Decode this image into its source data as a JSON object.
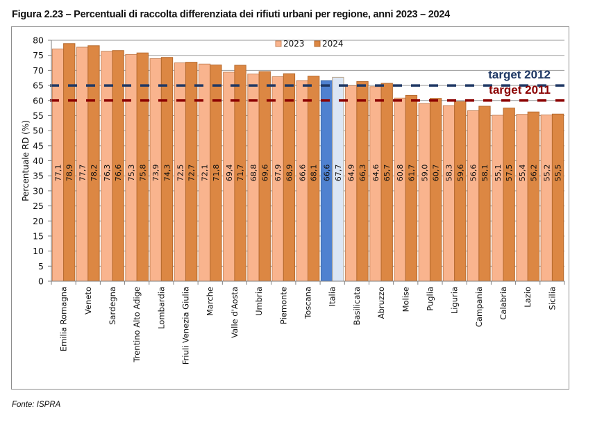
{
  "figure": {
    "title": "Figura 2.23 – Percentuali di raccolta differenziata dei rifiuti urbani per regione, anni 2023 – 2024",
    "source": "Fonte: ISPRA"
  },
  "chart_data": {
    "type": "bar",
    "title": "Figura 2.23 – Percentuali di raccolta differenziata dei rifiuti urbani per regione, anni 2023 – 2024",
    "xlabel": "",
    "ylabel": "Percentuale RD (%)",
    "ylim": [
      0,
      80
    ],
    "yticks": [
      0,
      5,
      10,
      15,
      20,
      25,
      30,
      35,
      40,
      45,
      50,
      55,
      60,
      65,
      70,
      75,
      80
    ],
    "grid": true,
    "legend_position": "top-center",
    "categories": [
      "Emilia Romagna",
      "Veneto",
      "Sardegna",
      "Trentino Alto Adige",
      "Lombardia",
      "Friuli Venezia Giulia",
      "Marche",
      "Valle d'Aosta",
      "Umbria",
      "Piemonte",
      "Toscana",
      "Italia",
      "Basilicata",
      "Abruzzo",
      "Molise",
      "Puglia",
      "Liguria",
      "Campania",
      "Calabria",
      "Lazio",
      "Sicilia"
    ],
    "series": [
      {
        "name": "2023",
        "color": "#F9B48E",
        "highlight_color": "#4F81D0",
        "values": [
          77.1,
          77.7,
          76.3,
          75.3,
          73.9,
          72.5,
          72.1,
          69.4,
          68.8,
          67.9,
          66.6,
          66.6,
          64.9,
          64.6,
          60.8,
          59.0,
          58.3,
          56.6,
          55.1,
          55.4,
          55.2
        ],
        "labels": [
          "77,1",
          "77,7",
          "76,3",
          "75,3",
          "73,9",
          "72,5",
          "72,1",
          "69,4",
          "68,8",
          "67,9",
          "66,6",
          "66,6",
          "64,9",
          "64,6",
          "60,8",
          "59,0",
          "58,3",
          "56,6",
          "55,1",
          "55,4",
          "55,2"
        ]
      },
      {
        "name": "2024",
        "color": "#DC8743",
        "highlight_color": "#DCE6F4",
        "values": [
          78.9,
          78.2,
          76.6,
          75.8,
          74.3,
          72.7,
          71.8,
          71.7,
          69.6,
          68.9,
          68.1,
          67.7,
          66.3,
          65.7,
          61.7,
          60.7,
          59.6,
          58.1,
          57.5,
          56.2,
          55.5
        ],
        "labels": [
          "78,9",
          "78,2",
          "76,6",
          "75,8",
          "74,3",
          "72,7",
          "71,8",
          "71,7",
          "69,6",
          "68,9",
          "68,1",
          "67,7",
          "66,3",
          "65,7",
          "61,7",
          "60,7",
          "59,6",
          "58,1",
          "57,5",
          "56,2",
          "55,5"
        ]
      }
    ],
    "highlight_category": "Italia",
    "reference_lines": [
      {
        "label": "target 2012",
        "value": 65,
        "color": "#1F3864",
        "style": "dashed"
      },
      {
        "label": "target 2011",
        "value": 60,
        "color": "#8B0000",
        "style": "dashed"
      }
    ]
  }
}
